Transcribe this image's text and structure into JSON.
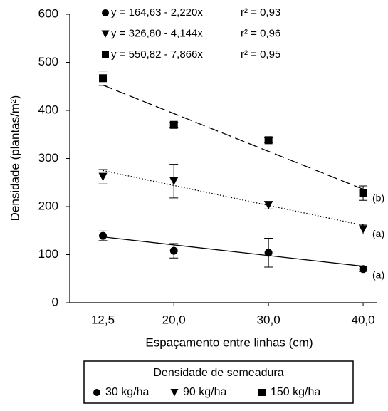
{
  "chart_data": {
    "type": "scatter",
    "x_label": "Espaçamento entre linhas (cm)",
    "y_label": "Densidade (plantas/m²)",
    "x": [
      12.5,
      20,
      30,
      40
    ],
    "xlim": [
      9,
      41.5
    ],
    "xticks": [
      {
        "value": 12.5,
        "label": "12,5"
      },
      {
        "value": 20,
        "label": "20,0"
      },
      {
        "value": 30,
        "label": "30,0"
      },
      {
        "value": 40,
        "label": "40,0"
      }
    ],
    "ylim": [
      0,
      600
    ],
    "yticks": [
      0,
      100,
      200,
      300,
      400,
      500,
      600
    ],
    "legend_title": "Densidade de semeadura",
    "series": [
      {
        "name": "30 kg/ha",
        "marker": "circle",
        "color": "#000000",
        "values": [
          139,
          108,
          104,
          70
        ],
        "errors": [
          10,
          15,
          30,
          5
        ],
        "equation": "y = 164,63 - 2,220x",
        "r2": "r² = 0,93",
        "trend": [
          136.9,
          75.8
        ],
        "line_style": "solid",
        "letter": "(a)"
      },
      {
        "name": "90 kg/ha",
        "marker": "triangle",
        "color": "#000000",
        "values": [
          262,
          253,
          203,
          153
        ],
        "errors": [
          15,
          35,
          8,
          10
        ],
        "equation": "y = 326,80 - 4,144x",
        "r2": "r² = 0,96",
        "trend": [
          275,
          161
        ],
        "line_style": "dotted",
        "letter": "(a)"
      },
      {
        "name": "150 kg/ha",
        "marker": "square",
        "color": "#000000",
        "values": [
          467,
          370,
          338,
          228
        ],
        "errors": [
          15,
          5,
          5,
          15
        ],
        "equation": "y = 550,82 - 7,866x",
        "r2": "r² = 0,95",
        "trend": [
          452.5,
          236.2
        ],
        "line_style": "dashed",
        "letter": "(b)"
      }
    ]
  }
}
